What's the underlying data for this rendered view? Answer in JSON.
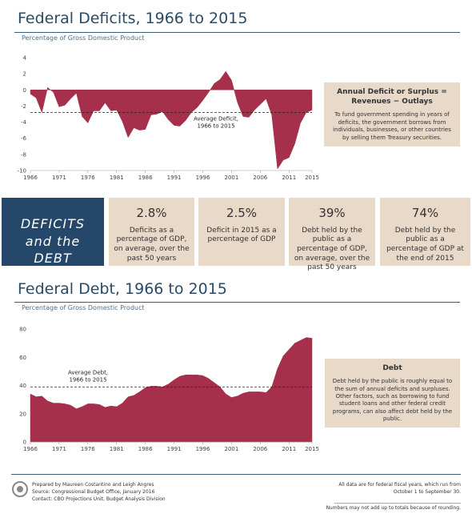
{
  "chart_data": [
    {
      "type": "area",
      "title": "Federal Deficits, 1966 to 2015",
      "subtitle": "Percentage of Gross Domestic Product",
      "color": "#a6304b",
      "x": [
        1966,
        1967,
        1968,
        1969,
        1970,
        1971,
        1972,
        1973,
        1974,
        1975,
        1976,
        1977,
        1978,
        1979,
        1980,
        1981,
        1982,
        1983,
        1984,
        1985,
        1986,
        1987,
        1988,
        1989,
        1990,
        1991,
        1992,
        1993,
        1994,
        1995,
        1996,
        1997,
        1998,
        1999,
        2000,
        2001,
        2002,
        2003,
        2004,
        2005,
        2006,
        2007,
        2008,
        2009,
        2010,
        2011,
        2012,
        2013,
        2014,
        2015
      ],
      "values": [
        -0.5,
        -1.0,
        -2.8,
        0.3,
        -0.3,
        -2.1,
        -1.9,
        -1.1,
        -0.4,
        -3.3,
        -4.1,
        -2.6,
        -2.6,
        -1.6,
        -2.6,
        -2.5,
        -3.9,
        -5.9,
        -4.7,
        -5.0,
        -4.9,
        -3.1,
        -3.0,
        -2.7,
        -3.7,
        -4.4,
        -4.5,
        -3.8,
        -2.8,
        -2.2,
        -1.3,
        -0.3,
        0.8,
        1.3,
        2.3,
        1.2,
        -1.5,
        -3.3,
        -3.4,
        -2.5,
        -1.8,
        -1.1,
        -3.1,
        -9.8,
        -8.7,
        -8.4,
        -6.7,
        -4.1,
        -2.8,
        -2.5
      ],
      "xlim": [
        1966,
        2015
      ],
      "xticks": [
        1966,
        1971,
        1976,
        1981,
        1986,
        1991,
        1996,
        2001,
        2006,
        2011,
        2015
      ],
      "ylim": [
        -10,
        4
      ],
      "yticks": [
        -10,
        -8,
        -6,
        -4,
        -2,
        0,
        2,
        4
      ],
      "grid": false,
      "reference_line": {
        "value": -2.8,
        "label": [
          "Average Deficit,",
          "1966 to 2015"
        ]
      }
    },
    {
      "type": "area",
      "title": "Federal Debt, 1966 to 2015",
      "subtitle": "Percentage of Gross Domestic Product",
      "color": "#a6304b",
      "x": [
        1966,
        1967,
        1968,
        1969,
        1970,
        1971,
        1972,
        1973,
        1974,
        1975,
        1976,
        1977,
        1978,
        1979,
        1980,
        1981,
        1982,
        1983,
        1984,
        1985,
        1986,
        1987,
        1988,
        1989,
        1990,
        1991,
        1992,
        1993,
        1994,
        1995,
        1996,
        1997,
        1998,
        1999,
        2000,
        2001,
        2002,
        2003,
        2004,
        2005,
        2006,
        2007,
        2008,
        2009,
        2010,
        2011,
        2012,
        2013,
        2014,
        2015
      ],
      "values": [
        34,
        32,
        32.5,
        29,
        27.5,
        27.5,
        27,
        26,
        23.5,
        25,
        27,
        27,
        26.5,
        24.5,
        25.5,
        25,
        27.5,
        32,
        33,
        35.5,
        38.5,
        39.5,
        39.5,
        39,
        41,
        44,
        46.5,
        47.5,
        47.5,
        47.5,
        47,
        45,
        42,
        39,
        34,
        31.5,
        32.5,
        34.5,
        35.5,
        35.5,
        35.5,
        35,
        39,
        52,
        61,
        65.5,
        70,
        72,
        74,
        73.5
      ],
      "xlim": [
        1966,
        2015
      ],
      "xticks": [
        1966,
        1971,
        1976,
        1981,
        1986,
        1991,
        1996,
        2001,
        2006,
        2011,
        2015
      ],
      "ylim": [
        0,
        80
      ],
      "yticks": [
        0,
        20,
        40,
        60,
        80
      ],
      "grid": false,
      "reference_line": {
        "value": 39,
        "label": [
          "Average Debt,",
          "1966 to 2015"
        ]
      }
    }
  ],
  "deficit_note": {
    "title": "Annual Deficit or Surplus = Revenues − Outlays",
    "body": "To fund government spending in years of deficits, the government borrows from individuals, businesses, or other countries by selling them Treasury securities."
  },
  "debt_note": {
    "title": "Debt",
    "body": "Debt held by the public is roughly equal to the sum of annual deficits and surpluses. Other factors, such as borrowing to fund student loans and other federal credit programs, can also affect debt held by the public."
  },
  "highlights": {
    "title": "DEFICITS and the DEBT",
    "items": [
      {
        "value": "2.8%",
        "text": "Deficits as a percentage of GDP, on average, over the past 50 years"
      },
      {
        "value": "2.5%",
        "text": "Deficit in 2015 as a percentage of GDP"
      },
      {
        "value": "39%",
        "text": "Debt held by the public as a percentage of GDP, on average, over the past 50 years"
      },
      {
        "value": "74%",
        "text": "Debt held by the public as a percentage of GDP at the end of 2015"
      }
    ]
  },
  "footer": {
    "credits": [
      "Prepared by Maureen Costantino and Leigh Angres",
      "Source: Congressional Budget Office, January 2016",
      "Contact: CBO Projections Unit, Budget Analysis Division"
    ],
    "notes": [
      "All data are for federal fiscal years, which run from October 1 to September 30.",
      "Numbers may not add up to totals because of rounding."
    ]
  }
}
